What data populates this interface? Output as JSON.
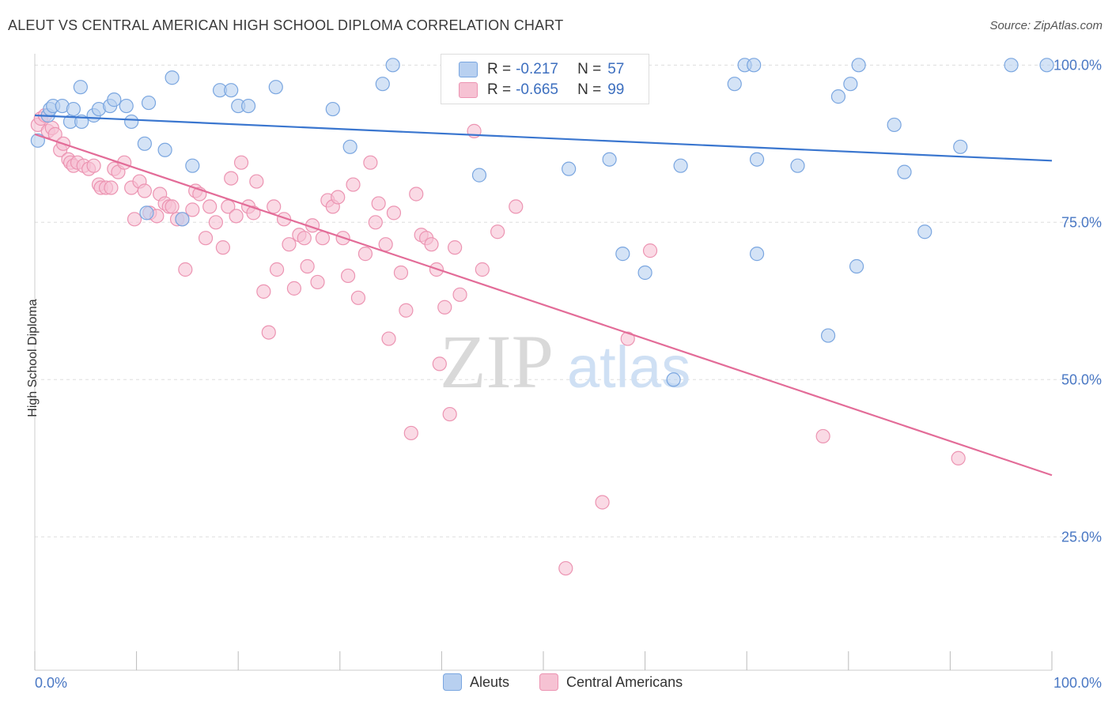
{
  "header": {
    "title": "ALEUT VS CENTRAL AMERICAN HIGH SCHOOL DIPLOMA CORRELATION CHART",
    "source": "Source: ZipAtlas.com"
  },
  "watermark": {
    "zip": "ZIP",
    "atlas": "atlas"
  },
  "colors": {
    "blue_fill": "#b8d0f0",
    "blue_stroke": "#7aa6e0",
    "blue_line": "#3a76cf",
    "pink_fill": "#f6c2d3",
    "pink_stroke": "#ec94b2",
    "pink_line": "#e36c98",
    "axis_text": "#4a78c4",
    "grid": "#dddddd"
  },
  "legend": {
    "aleut": {
      "r_label": "R =",
      "r_value": "-0.217",
      "n_label": "N =",
      "n_value": "57"
    },
    "central": {
      "r_label": "R =",
      "r_value": "-0.665",
      "n_label": "N =",
      "n_value": "99"
    }
  },
  "chart_data": {
    "type": "scatter",
    "xlabel": "",
    "ylabel": "High School Diploma",
    "x_tick_labels": [
      "0.0%",
      "100.0%"
    ],
    "y_tick_labels": [
      "100.0%",
      "75.0%",
      "50.0%",
      "25.0%"
    ],
    "xlim": [
      0,
      100
    ],
    "ylim": [
      3.8,
      101.8
    ],
    "y_gridlines": [
      100,
      75,
      50,
      25
    ],
    "legend_position": "bottom",
    "series": [
      {
        "name": "Aleuts",
        "trend": {
          "x": [
            0,
            100
          ],
          "y": [
            92,
            84.8
          ]
        },
        "points": [
          [
            0.3,
            88
          ],
          [
            1.3,
            92
          ],
          [
            1.5,
            93
          ],
          [
            1.8,
            93.5
          ],
          [
            2.7,
            93.5
          ],
          [
            3.5,
            91
          ],
          [
            3.8,
            93
          ],
          [
            4.5,
            96.5
          ],
          [
            4.6,
            91
          ],
          [
            5.8,
            92
          ],
          [
            6.3,
            93
          ],
          [
            7.4,
            93.5
          ],
          [
            7.8,
            94.5
          ],
          [
            9.0,
            93.5
          ],
          [
            9.5,
            91
          ],
          [
            10.8,
            87.5
          ],
          [
            11.0,
            76.5
          ],
          [
            11.2,
            94
          ],
          [
            12.8,
            86.5
          ],
          [
            13.5,
            98
          ],
          [
            14.5,
            75.5
          ],
          [
            15.5,
            84
          ],
          [
            18.2,
            96
          ],
          [
            19.3,
            96
          ],
          [
            20.0,
            93.5
          ],
          [
            21.0,
            93.5
          ],
          [
            23.7,
            96.5
          ],
          [
            29.3,
            93
          ],
          [
            31.0,
            87
          ],
          [
            34.2,
            97
          ],
          [
            35.2,
            100
          ],
          [
            43.7,
            82.5
          ],
          [
            47.2,
            100
          ],
          [
            52.5,
            83.5
          ],
          [
            57.2,
            100
          ],
          [
            56.5,
            85
          ],
          [
            57.8,
            70
          ],
          [
            62.8,
            50
          ],
          [
            63.5,
            84
          ],
          [
            68.8,
            97
          ],
          [
            69.8,
            100
          ],
          [
            70.7,
            100
          ],
          [
            71.0,
            85
          ],
          [
            71.0,
            70
          ],
          [
            75.0,
            84
          ],
          [
            78.0,
            57
          ],
          [
            79.0,
            95
          ],
          [
            80.2,
            97
          ],
          [
            80.8,
            68
          ],
          [
            81.0,
            100
          ],
          [
            84.5,
            90.5
          ],
          [
            85.5,
            83
          ],
          [
            87.5,
            73.5
          ],
          [
            91.0,
            87
          ],
          [
            96.0,
            100
          ],
          [
            99.5,
            100
          ],
          [
            60,
            67
          ]
        ]
      },
      {
        "name": "Central Americans",
        "trend": {
          "x": [
            0,
            100
          ],
          "y": [
            89,
            34.8
          ]
        },
        "points": [
          [
            0.3,
            90.5
          ],
          [
            0.6,
            91.5
          ],
          [
            1.0,
            92
          ],
          [
            1.3,
            89.5
          ],
          [
            1.7,
            90
          ],
          [
            2.0,
            89
          ],
          [
            2.5,
            86.5
          ],
          [
            2.8,
            87.5
          ],
          [
            3.3,
            85
          ],
          [
            3.5,
            84.5
          ],
          [
            3.8,
            84
          ],
          [
            4.2,
            84.5
          ],
          [
            4.8,
            84
          ],
          [
            5.3,
            83.5
          ],
          [
            5.8,
            84
          ],
          [
            6.3,
            81
          ],
          [
            6.5,
            80.5
          ],
          [
            7.0,
            80.5
          ],
          [
            7.5,
            80.5
          ],
          [
            7.8,
            83.5
          ],
          [
            8.2,
            83
          ],
          [
            8.8,
            84.5
          ],
          [
            9.5,
            80.5
          ],
          [
            9.8,
            75.5
          ],
          [
            10.3,
            81.5
          ],
          [
            10.8,
            80
          ],
          [
            11.3,
            76.5
          ],
          [
            12.0,
            76
          ],
          [
            12.3,
            79.5
          ],
          [
            12.8,
            78
          ],
          [
            13.2,
            77.5
          ],
          [
            13.5,
            77.5
          ],
          [
            14.0,
            75.5
          ],
          [
            14.5,
            75.5
          ],
          [
            14.8,
            67.5
          ],
          [
            15.5,
            77
          ],
          [
            15.8,
            80
          ],
          [
            16.2,
            79.5
          ],
          [
            16.8,
            72.5
          ],
          [
            17.2,
            77.5
          ],
          [
            17.8,
            75
          ],
          [
            18.5,
            71
          ],
          [
            19.0,
            77.5
          ],
          [
            19.3,
            82
          ],
          [
            19.8,
            76
          ],
          [
            20.3,
            84.5
          ],
          [
            21.0,
            77.5
          ],
          [
            21.5,
            76.5
          ],
          [
            21.8,
            81.5
          ],
          [
            22.5,
            64
          ],
          [
            23.0,
            57.5
          ],
          [
            23.5,
            77.5
          ],
          [
            23.8,
            67.5
          ],
          [
            24.5,
            75.5
          ],
          [
            25.0,
            71.5
          ],
          [
            25.5,
            64.5
          ],
          [
            26.0,
            73
          ],
          [
            26.5,
            72.5
          ],
          [
            26.8,
            68
          ],
          [
            27.3,
            74.5
          ],
          [
            27.8,
            65.5
          ],
          [
            28.3,
            72.5
          ],
          [
            28.8,
            78.5
          ],
          [
            29.3,
            77.5
          ],
          [
            29.8,
            79
          ],
          [
            30.3,
            72.5
          ],
          [
            30.8,
            66.5
          ],
          [
            31.3,
            81
          ],
          [
            31.8,
            63
          ],
          [
            32.5,
            70
          ],
          [
            33.0,
            84.5
          ],
          [
            33.5,
            75
          ],
          [
            33.8,
            78
          ],
          [
            34.5,
            71.5
          ],
          [
            34.8,
            56.5
          ],
          [
            35.3,
            76.5
          ],
          [
            36.0,
            67
          ],
          [
            36.5,
            61
          ],
          [
            37.0,
            41.5
          ],
          [
            37.5,
            79.5
          ],
          [
            38.0,
            73
          ],
          [
            38.5,
            72.5
          ],
          [
            39.0,
            71.5
          ],
          [
            39.5,
            67.5
          ],
          [
            39.8,
            52.5
          ],
          [
            40.3,
            61.5
          ],
          [
            40.8,
            44.5
          ],
          [
            41.3,
            71
          ],
          [
            41.8,
            63.5
          ],
          [
            43.2,
            89.5
          ],
          [
            44.0,
            67.5
          ],
          [
            45.5,
            73.5
          ],
          [
            47.3,
            77.5
          ],
          [
            52.2,
            20
          ],
          [
            55.8,
            30.5
          ],
          [
            58.3,
            56.5
          ],
          [
            60.5,
            70.5
          ],
          [
            77.5,
            41
          ],
          [
            90.8,
            37.5
          ]
        ]
      }
    ]
  }
}
